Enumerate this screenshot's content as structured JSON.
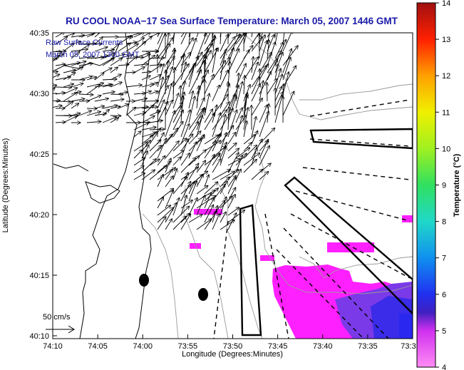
{
  "title": "RU COOL  NOAA−17  Sea Surface Temperature:  March 05, 2007 1446 GMT",
  "inset_lines": [
    "Raw Surface Currents",
    "March 05, 2007 1300 GMT"
  ],
  "scale_label": "50 cm/s",
  "axes": {
    "xlabel": "Longitude (Degrees:Minutes)",
    "ylabel": "Latitude (Degrees:Minutes)",
    "x_ticks": [
      "74:10",
      "74:05",
      "74:00",
      "73:55",
      "73:50",
      "73:45",
      "73:40",
      "73:35",
      "73:3"
    ],
    "y_ticks": [
      "40:35",
      "40:30",
      "40:25",
      "40:20",
      "40:15",
      "40:10"
    ]
  },
  "colorbar": {
    "label": "Temperature (°C)",
    "ticks": [
      "14",
      "13",
      "12",
      "11",
      "10",
      "9",
      "8",
      "7",
      "6",
      "5",
      "4"
    ],
    "min": 4,
    "max": 14
  },
  "colors": {
    "title": "#1a1aa8",
    "sst_warm": "#ff20ff",
    "sst_cool": "#5a2ce8"
  }
}
